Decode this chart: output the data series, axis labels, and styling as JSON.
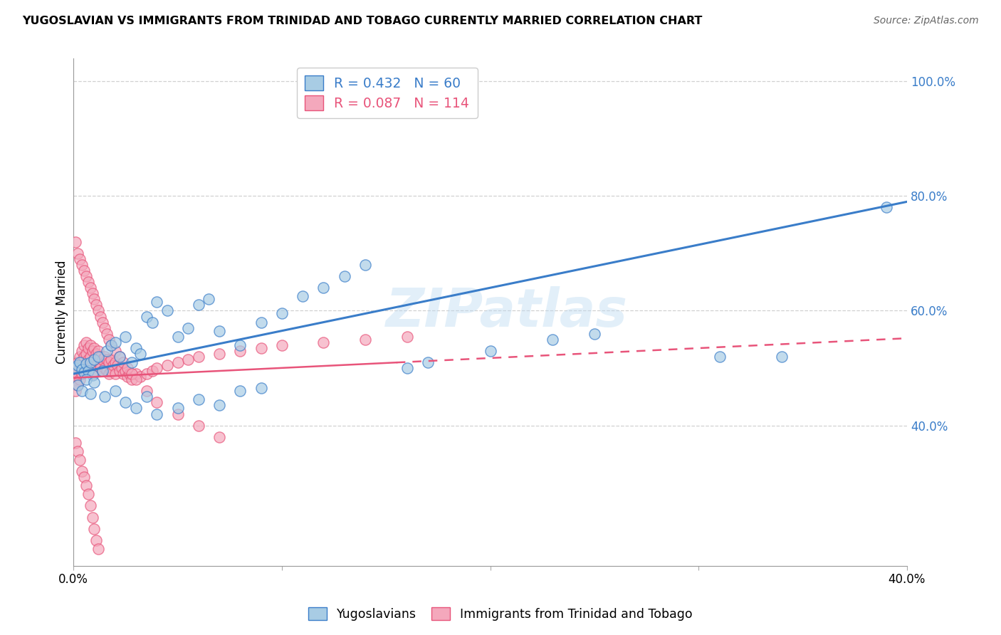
{
  "title": "YUGOSLAVIAN VS IMMIGRANTS FROM TRINIDAD AND TOBAGO CURRENTLY MARRIED CORRELATION CHART",
  "source": "Source: ZipAtlas.com",
  "ylabel": "Currently Married",
  "yticks": [
    "40.0%",
    "60.0%",
    "80.0%",
    "100.0%"
  ],
  "ytick_vals": [
    0.4,
    0.6,
    0.8,
    1.0
  ],
  "legend_blue_R": "R = 0.432",
  "legend_blue_N": "N = 60",
  "legend_pink_R": "R = 0.087",
  "legend_pink_N": "N = 114",
  "legend_label_blue": "Yugoslavians",
  "legend_label_pink": "Immigrants from Trinidad and Tobago",
  "watermark": "ZIPatlas",
  "blue_color": "#a8cce4",
  "pink_color": "#f4a8bc",
  "blue_line_color": "#3a7dc9",
  "pink_line_color": "#e8547a",
  "blue_scatter": {
    "x": [
      0.001,
      0.002,
      0.003,
      0.004,
      0.005,
      0.006,
      0.007,
      0.008,
      0.009,
      0.01,
      0.012,
      0.014,
      0.016,
      0.018,
      0.02,
      0.022,
      0.025,
      0.028,
      0.03,
      0.032,
      0.035,
      0.038,
      0.04,
      0.045,
      0.05,
      0.055,
      0.06,
      0.065,
      0.07,
      0.08,
      0.09,
      0.1,
      0.11,
      0.12,
      0.13,
      0.14,
      0.002,
      0.004,
      0.006,
      0.008,
      0.01,
      0.015,
      0.02,
      0.025,
      0.03,
      0.035,
      0.04,
      0.05,
      0.06,
      0.07,
      0.08,
      0.09,
      0.2,
      0.23,
      0.25,
      0.16,
      0.17,
      0.39,
      0.31,
      0.34
    ],
    "y": [
      0.5,
      0.505,
      0.51,
      0.498,
      0.492,
      0.508,
      0.495,
      0.51,
      0.488,
      0.515,
      0.52,
      0.495,
      0.53,
      0.54,
      0.545,
      0.52,
      0.555,
      0.51,
      0.535,
      0.525,
      0.59,
      0.58,
      0.615,
      0.6,
      0.555,
      0.57,
      0.61,
      0.62,
      0.565,
      0.54,
      0.58,
      0.595,
      0.625,
      0.64,
      0.66,
      0.68,
      0.47,
      0.46,
      0.48,
      0.455,
      0.475,
      0.45,
      0.46,
      0.44,
      0.43,
      0.45,
      0.42,
      0.43,
      0.445,
      0.435,
      0.46,
      0.465,
      0.53,
      0.55,
      0.56,
      0.5,
      0.51,
      0.78,
      0.52,
      0.52
    ]
  },
  "pink_scatter": {
    "x": [
      0.001,
      0.001,
      0.001,
      0.002,
      0.002,
      0.002,
      0.003,
      0.003,
      0.003,
      0.004,
      0.004,
      0.004,
      0.005,
      0.005,
      0.005,
      0.006,
      0.006,
      0.006,
      0.007,
      0.007,
      0.007,
      0.008,
      0.008,
      0.008,
      0.009,
      0.009,
      0.009,
      0.01,
      0.01,
      0.01,
      0.011,
      0.011,
      0.012,
      0.012,
      0.013,
      0.013,
      0.014,
      0.014,
      0.015,
      0.015,
      0.016,
      0.016,
      0.017,
      0.017,
      0.018,
      0.018,
      0.019,
      0.02,
      0.02,
      0.021,
      0.022,
      0.023,
      0.024,
      0.025,
      0.026,
      0.027,
      0.028,
      0.03,
      0.032,
      0.035,
      0.038,
      0.04,
      0.045,
      0.05,
      0.055,
      0.06,
      0.07,
      0.08,
      0.09,
      0.1,
      0.12,
      0.14,
      0.16,
      0.001,
      0.002,
      0.003,
      0.004,
      0.005,
      0.006,
      0.007,
      0.008,
      0.009,
      0.01,
      0.011,
      0.012,
      0.013,
      0.014,
      0.015,
      0.016,
      0.017,
      0.018,
      0.02,
      0.022,
      0.024,
      0.026,
      0.028,
      0.03,
      0.035,
      0.04,
      0.05,
      0.06,
      0.07,
      0.001,
      0.002,
      0.003,
      0.004,
      0.005,
      0.006,
      0.007,
      0.008,
      0.009,
      0.01,
      0.011,
      0.012
    ],
    "y": [
      0.5,
      0.48,
      0.46,
      0.51,
      0.49,
      0.47,
      0.52,
      0.5,
      0.48,
      0.53,
      0.51,
      0.49,
      0.54,
      0.52,
      0.5,
      0.545,
      0.525,
      0.505,
      0.535,
      0.515,
      0.495,
      0.54,
      0.52,
      0.5,
      0.53,
      0.51,
      0.49,
      0.535,
      0.515,
      0.495,
      0.525,
      0.505,
      0.53,
      0.51,
      0.52,
      0.5,
      0.515,
      0.495,
      0.52,
      0.5,
      0.515,
      0.495,
      0.51,
      0.49,
      0.515,
      0.495,
      0.505,
      0.51,
      0.49,
      0.505,
      0.495,
      0.5,
      0.49,
      0.495,
      0.485,
      0.49,
      0.48,
      0.49,
      0.485,
      0.49,
      0.495,
      0.5,
      0.505,
      0.51,
      0.515,
      0.52,
      0.525,
      0.53,
      0.535,
      0.54,
      0.545,
      0.55,
      0.555,
      0.72,
      0.7,
      0.69,
      0.68,
      0.67,
      0.66,
      0.65,
      0.64,
      0.63,
      0.62,
      0.61,
      0.6,
      0.59,
      0.58,
      0.57,
      0.56,
      0.55,
      0.54,
      0.53,
      0.52,
      0.51,
      0.5,
      0.49,
      0.48,
      0.46,
      0.44,
      0.42,
      0.4,
      0.38,
      0.37,
      0.355,
      0.34,
      0.32,
      0.31,
      0.295,
      0.28,
      0.26,
      0.24,
      0.22,
      0.2,
      0.185
    ]
  },
  "blue_line": {
    "x0": 0.0,
    "x1": 0.4,
    "y0": 0.49,
    "y1": 0.79
  },
  "pink_line": {
    "x0": 0.0,
    "x1": 0.4,
    "y0": 0.483,
    "y1": 0.552
  },
  "pink_line_dash_start": 0.155,
  "xmin": 0.0,
  "xmax": 0.4,
  "ymin": 0.155,
  "ymax": 1.04,
  "xtick_positions": [
    0.0,
    0.1,
    0.2,
    0.3,
    0.4
  ],
  "xtick_labels": [
    "0.0%",
    "",
    "",
    "",
    "40.0%"
  ],
  "grid_color": "#cccccc",
  "background_color": "#ffffff",
  "title_fontsize": 11.5,
  "axis_fontsize": 12,
  "source_color": "#666666"
}
